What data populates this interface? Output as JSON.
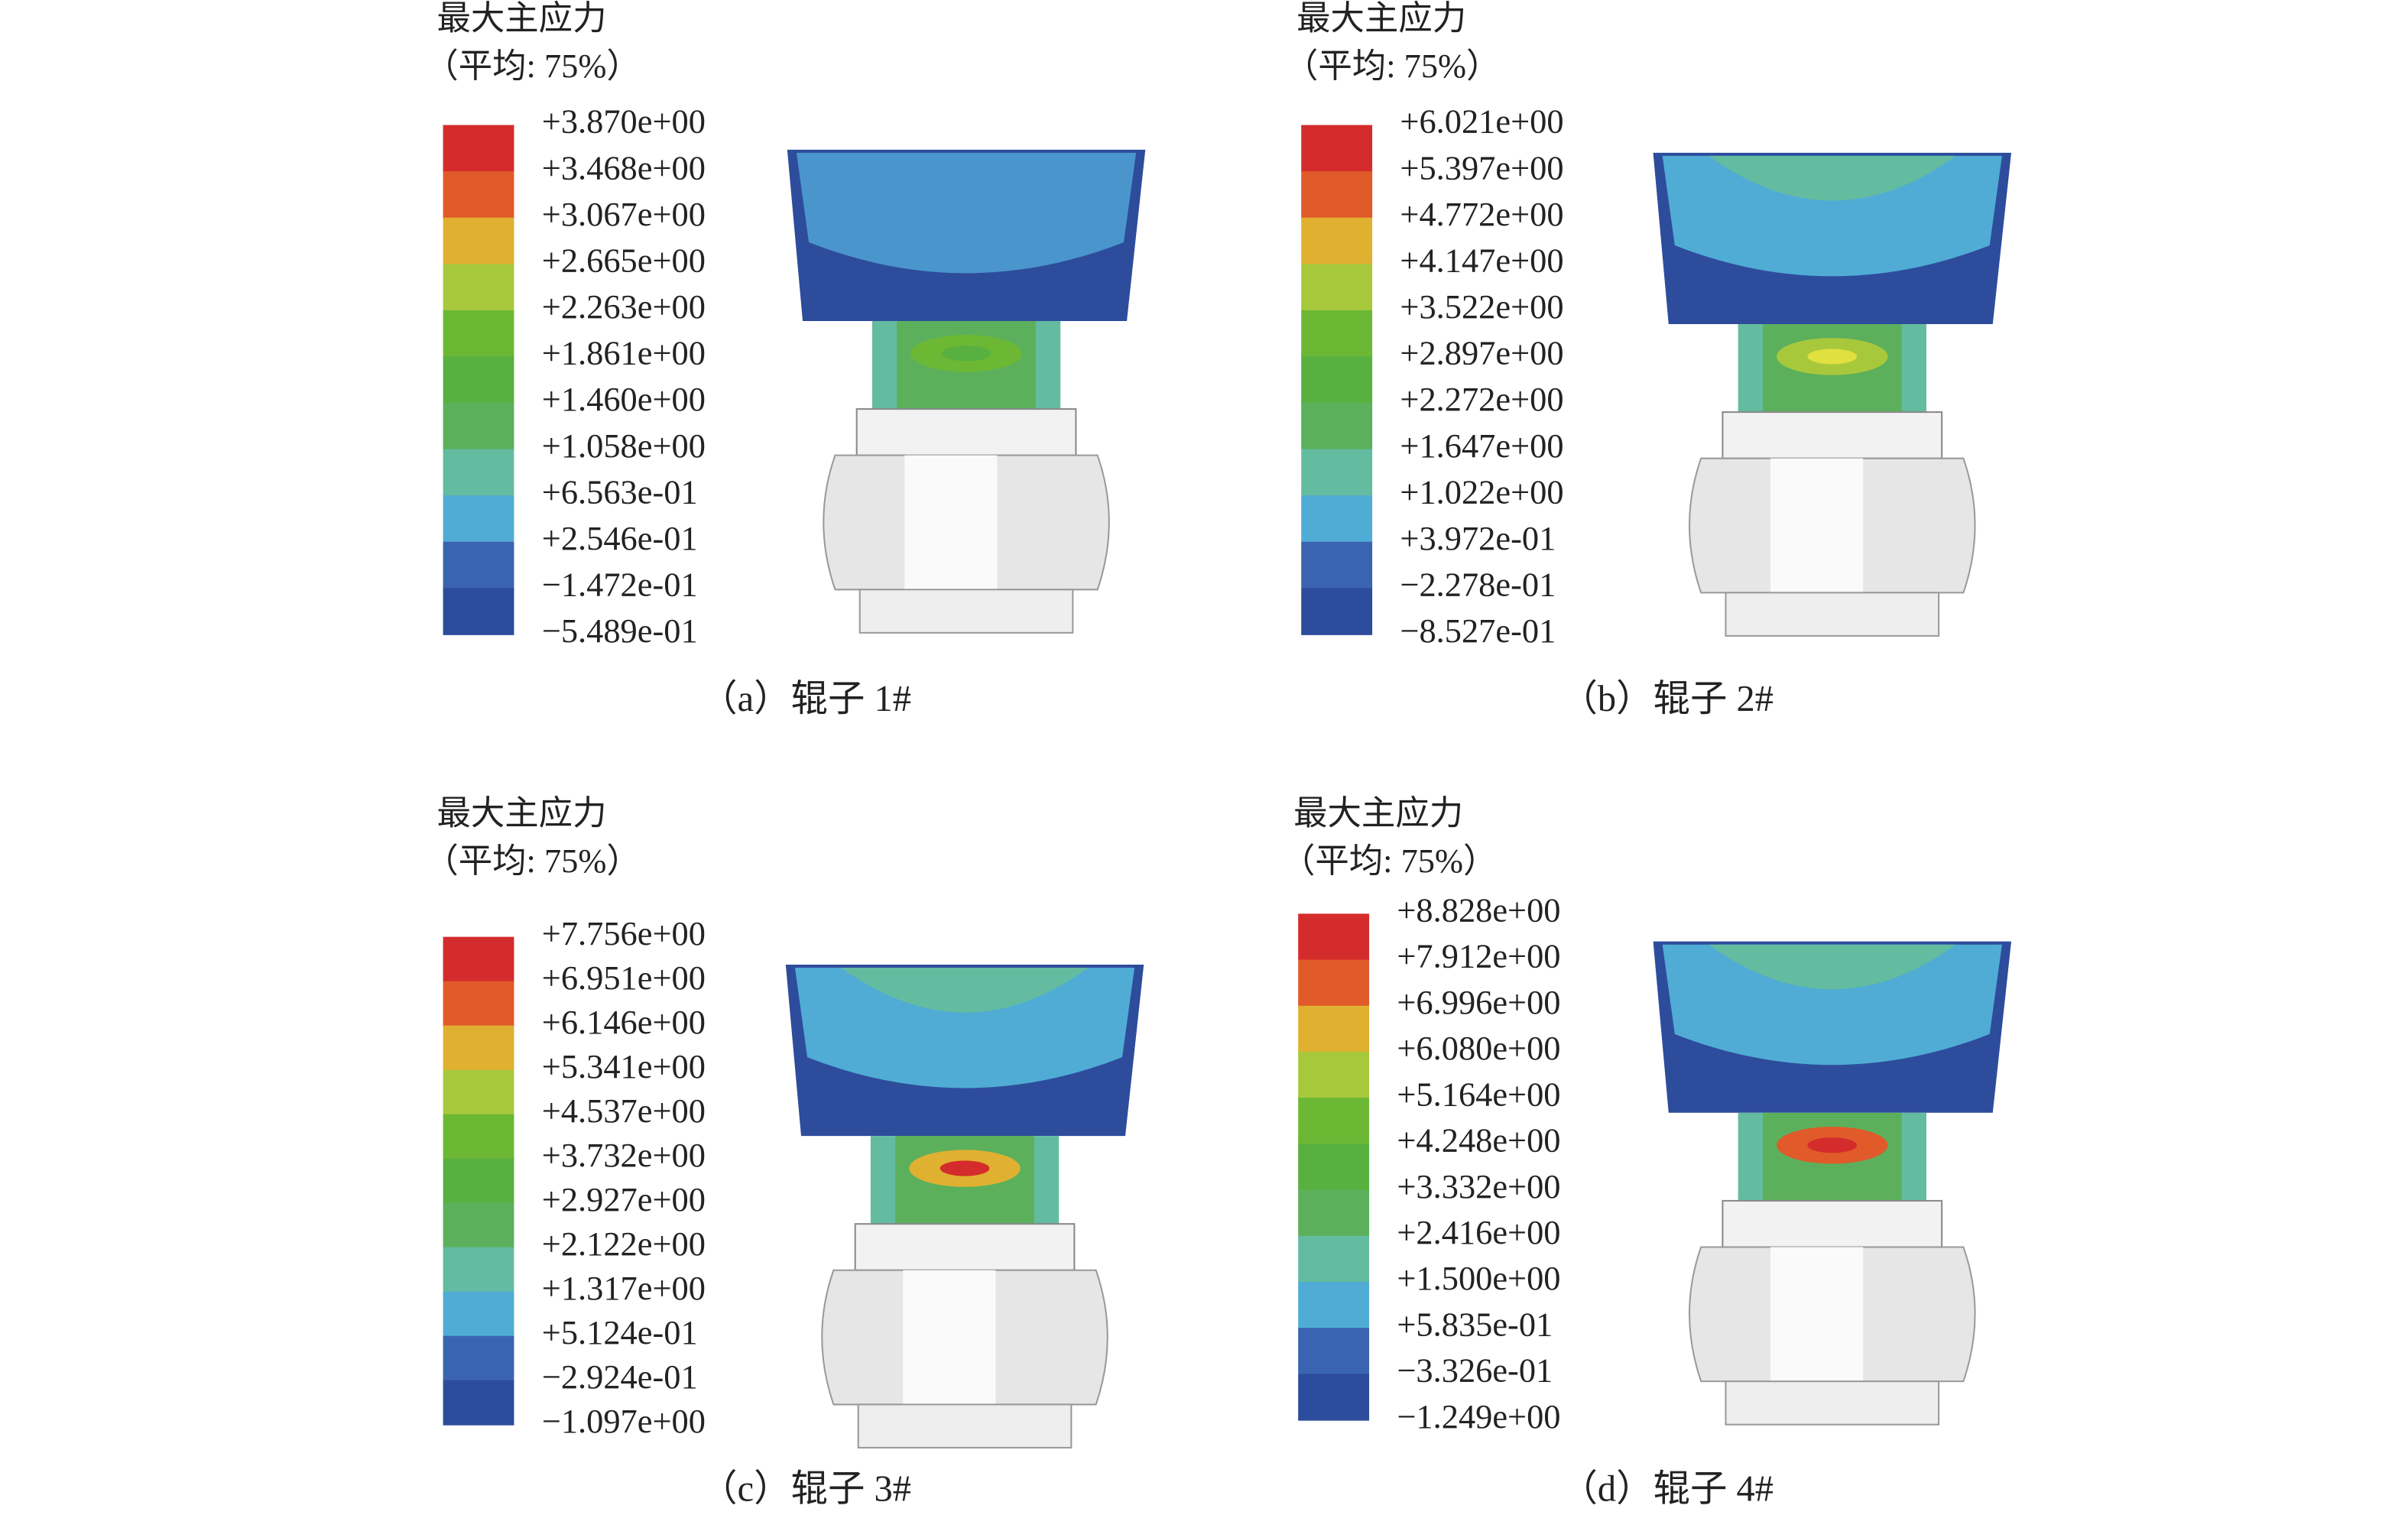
{
  "panels": [
    {
      "legend_title": "最大主应力",
      "legend_subtitle": "（平均: 75%）",
      "legend_labels": [
        "+3.870e+00",
        "+3.468e+00",
        "+3.067e+00",
        "+2.665e+00",
        "+2.263e+00",
        "+1.861e+00",
        "+1.460e+00",
        "+1.058e+00",
        "+6.563e-01",
        "+2.546e-01",
        "−1.472e-01",
        "−5.489e-01"
      ],
      "caption": "（a）辊子 1#"
    },
    {
      "legend_title": "最大主应力",
      "legend_subtitle": "（平均: 75%）",
      "legend_labels": [
        "+6.021e+00",
        "+5.397e+00",
        "+4.772e+00",
        "+4.147e+00",
        "+3.522e+00",
        "+2.897e+00",
        "+2.272e+00",
        "+1.647e+00",
        "+1.022e+00",
        "+3.972e-01",
        "−2.278e-01",
        "−8.527e-01"
      ],
      "caption": "（b）辊子 2#"
    },
    {
      "legend_title": "最大主应力",
      "legend_subtitle": "（平均: 75%）",
      "legend_labels": [
        "+7.756e+00",
        "+6.951e+00",
        "+6.146e+00",
        "+5.341e+00",
        "+4.537e+00",
        "+3.732e+00",
        "+2.927e+00",
        "+2.122e+00",
        "+1.317e+00",
        "+5.124e-01",
        "−2.924e-01",
        "−1.097e+00"
      ],
      "caption": "（c）辊子 3#"
    },
    {
      "legend_title": "最大主应力",
      "legend_subtitle": "（平均: 75%）",
      "legend_labels": [
        "+8.828e+00",
        "+7.912e+00",
        "+6.996e+00",
        "+6.080e+00",
        "+5.164e+00",
        "+4.248e+00",
        "+3.332e+00",
        "+2.416e+00",
        "+1.500e+00",
        "+5.835e-01",
        "−3.326e-01",
        "−1.249e+00"
      ],
      "caption": "（d）辊子 4#"
    }
  ],
  "legend_colors": [
    "#d42c2c",
    "#e05a2a",
    "#e0b030",
    "#a8c83c",
    "#6cb834",
    "#58b040",
    "#5cb05c",
    "#64bca0",
    "#50acd4",
    "#3a64b0",
    "#2e4c9c"
  ]
}
